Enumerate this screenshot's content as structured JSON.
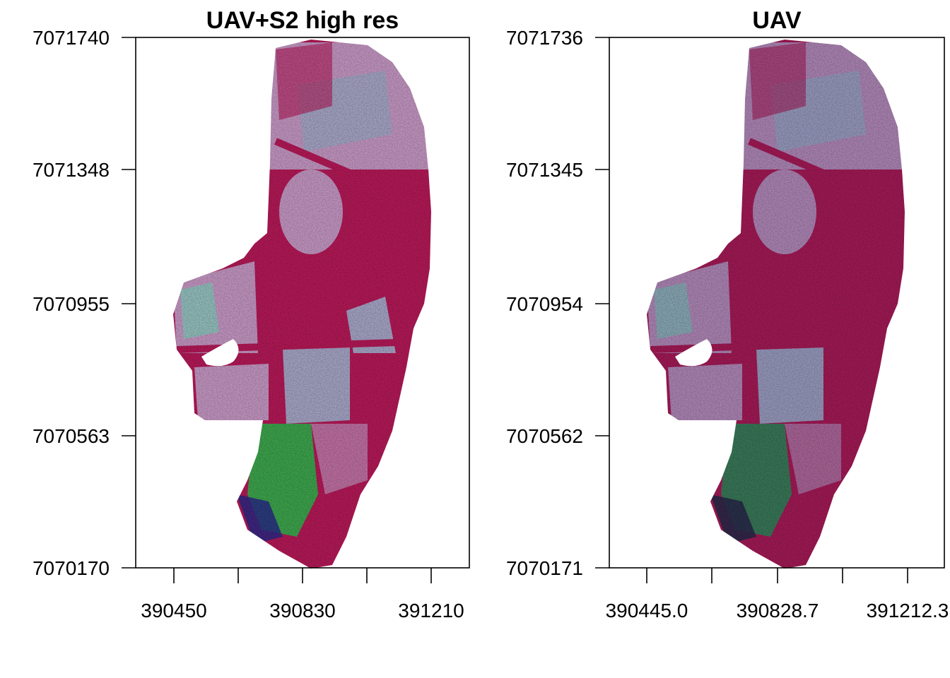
{
  "panels": [
    {
      "title": "UAV+S2 high res",
      "y_ticks": [
        "7071740",
        "7071348",
        "7070955",
        "7070563",
        "7070170"
      ],
      "x_ticks": [
        "390450",
        "390830",
        "391210"
      ],
      "palette": {
        "main": "#b8195a",
        "light": "#c89ac6",
        "field": "#a9a8c9",
        "green": "#3fa84f",
        "cyan": "#6fe8c0",
        "blue": "#2a2a8a"
      }
    },
    {
      "title": "UAV",
      "y_ticks": [
        "7071736",
        "7071345",
        "7070954",
        "7070562",
        "7070171"
      ],
      "x_ticks": [
        "390445.0",
        "390828.7",
        "391212.3"
      ],
      "palette": {
        "main": "#a51c58",
        "light": "#b088b8",
        "field": "#9a9cc0",
        "green": "#3a7a5a",
        "cyan": "#60d8b8",
        "blue": "#2a2a4a"
      }
    }
  ]
}
